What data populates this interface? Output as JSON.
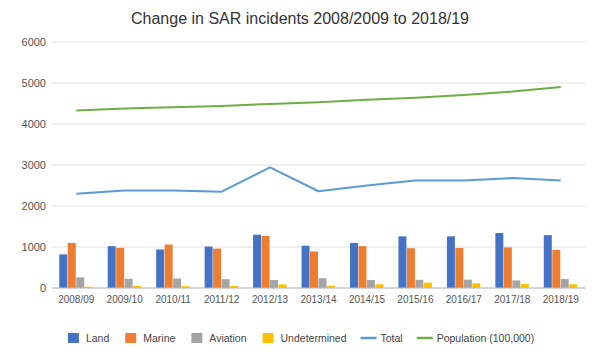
{
  "chart_data": {
    "type": "bar",
    "title": "Change in SAR incidents 2008/2009 to 2018/19",
    "categories": [
      "2008/09",
      "2009/10",
      "2010/11",
      "2011/12",
      "2012/13",
      "2013/14",
      "2014/15",
      "2015/16",
      "2016/17",
      "2017/18",
      "2018/19"
    ],
    "series": [
      {
        "name": "Land",
        "type": "bar",
        "color": "#4472C4",
        "values": [
          820,
          1020,
          940,
          1010,
          1300,
          1030,
          1100,
          1260,
          1260,
          1340,
          1290
        ]
      },
      {
        "name": "Marine",
        "type": "bar",
        "color": "#ED7D31",
        "values": [
          1100,
          980,
          1060,
          960,
          1270,
          890,
          1020,
          970,
          975,
          990,
          930
        ]
      },
      {
        "name": "Aviation",
        "type": "bar",
        "color": "#A5A5A5",
        "values": [
          260,
          225,
          230,
          215,
          195,
          240,
          195,
          200,
          205,
          185,
          220
        ]
      },
      {
        "name": "Undetermined",
        "type": "bar",
        "color": "#FFC000",
        "values": [
          30,
          50,
          45,
          50,
          90,
          55,
          90,
          130,
          115,
          100,
          90
        ]
      },
      {
        "name": "Total",
        "type": "line",
        "color": "#5B9BD5",
        "values": [
          2300,
          2380,
          2380,
          2350,
          2940,
          2360,
          2500,
          2620,
          2620,
          2680,
          2620
        ]
      },
      {
        "name": "Population (100,000)",
        "type": "line",
        "color": "#70AD47",
        "values": [
          4330,
          4380,
          4410,
          4440,
          4490,
          4530,
          4590,
          4640,
          4710,
          4790,
          4900
        ]
      }
    ],
    "ylim": [
      0,
      6000
    ],
    "yticks": [
      0,
      1000,
      2000,
      3000,
      4000,
      5000,
      6000
    ],
    "grid": true,
    "legend": "bottom"
  }
}
